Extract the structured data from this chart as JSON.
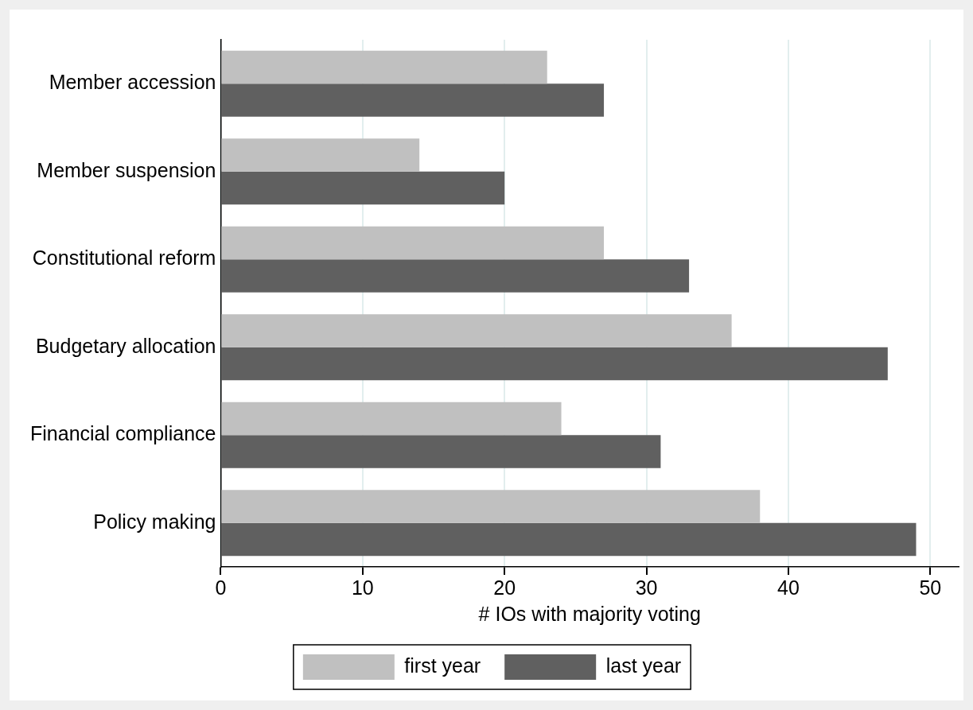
{
  "chart_data": {
    "type": "bar",
    "orientation": "horizontal",
    "xlabel": "# IOs with majority voting",
    "categories": [
      "Member accession",
      "Member suspension",
      "Constitutional reform",
      "Budgetary allocation",
      "Financial compliance",
      "Policy making"
    ],
    "series": [
      {
        "name": "first year",
        "color": "#c0c0c0",
        "values": [
          23,
          14,
          27,
          36,
          24,
          38
        ]
      },
      {
        "name": "last year",
        "color": "#606060",
        "values": [
          27,
          20,
          33,
          47,
          31,
          49
        ]
      }
    ],
    "xlim": [
      0,
      52
    ],
    "xticks": [
      0,
      10,
      20,
      30,
      40,
      50
    ],
    "grid": "x",
    "legend": "bottom"
  }
}
